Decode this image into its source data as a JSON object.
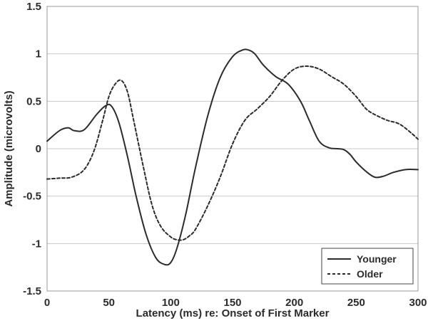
{
  "chart_data": {
    "type": "line",
    "xlabel": "Latency (ms) re: Onset of First Marker",
    "ylabel": "Amplitude (microvolts)",
    "xlim": [
      0,
      300
    ],
    "ylim": [
      -1.5,
      1.5
    ],
    "xticks": [
      0,
      50,
      100,
      150,
      200,
      250,
      300
    ],
    "yticks": [
      1.5,
      1,
      0.5,
      0,
      -0.5,
      -1,
      -1.5
    ],
    "ytick_labels": [
      "1.5",
      "1",
      "0.5",
      "0",
      "-0.5",
      "-1",
      "-1.5"
    ],
    "xtick_labels": [
      "0",
      "50",
      "100",
      "150",
      "200",
      "250",
      "300"
    ],
    "grid": "horizontal",
    "legend_position": "bottom-right",
    "series": [
      {
        "name": "Younger",
        "style": "solid",
        "color": "#2b2b2b",
        "x": [
          0,
          10,
          17,
          22,
          30,
          40,
          47,
          52,
          58,
          65,
          72,
          80,
          88,
          95,
          100,
          105,
          112,
          120,
          130,
          140,
          150,
          158,
          163,
          168,
          175,
          185,
          195,
          205,
          212,
          220,
          228,
          235,
          240,
          245,
          250,
          258,
          265,
          272,
          280,
          290,
          300
        ],
        "y": [
          0.08,
          0.19,
          0.22,
          0.19,
          0.2,
          0.36,
          0.45,
          0.45,
          0.28,
          -0.08,
          -0.5,
          -0.9,
          -1.15,
          -1.22,
          -1.2,
          -1.05,
          -0.7,
          -0.2,
          0.35,
          0.75,
          0.97,
          1.04,
          1.04,
          1.0,
          0.88,
          0.76,
          0.68,
          0.5,
          0.3,
          0.08,
          0.01,
          0.0,
          -0.01,
          -0.06,
          -0.14,
          -0.24,
          -0.3,
          -0.29,
          -0.25,
          -0.22,
          -0.22
        ]
      },
      {
        "name": "Older",
        "style": "dashed",
        "color": "#2b2b2b",
        "x": [
          0,
          10,
          20,
          30,
          38,
          45,
          50,
          55,
          60,
          65,
          70,
          78,
          85,
          92,
          100,
          105,
          110,
          115,
          120,
          130,
          140,
          150,
          160,
          170,
          180,
          190,
          200,
          210,
          220,
          230,
          240,
          250,
          258,
          265,
          275,
          285,
          295,
          300
        ],
        "y": [
          -0.32,
          -0.31,
          -0.3,
          -0.22,
          -0.02,
          0.3,
          0.55,
          0.68,
          0.72,
          0.6,
          0.3,
          -0.2,
          -0.6,
          -0.82,
          -0.93,
          -0.96,
          -0.96,
          -0.92,
          -0.85,
          -0.6,
          -0.3,
          0.05,
          0.3,
          0.42,
          0.55,
          0.72,
          0.84,
          0.87,
          0.84,
          0.76,
          0.68,
          0.55,
          0.42,
          0.36,
          0.3,
          0.26,
          0.16,
          0.1
        ]
      }
    ]
  }
}
